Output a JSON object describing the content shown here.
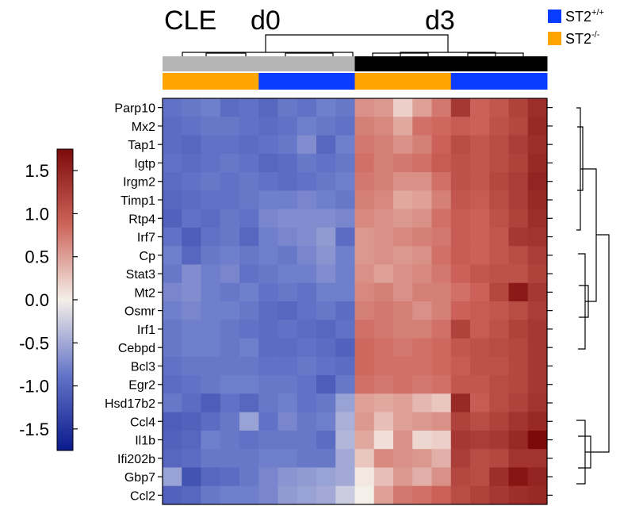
{
  "chart_data": {
    "type": "heatmap",
    "title_left": "CLE",
    "group_labels": [
      "d0",
      "d3"
    ],
    "columns": 20,
    "column_day": [
      "d0",
      "d0",
      "d0",
      "d0",
      "d0",
      "d0",
      "d0",
      "d0",
      "d0",
      "d0",
      "d3",
      "d3",
      "d3",
      "d3",
      "d3",
      "d3",
      "d3",
      "d3",
      "d3",
      "d3"
    ],
    "column_genotype": [
      "ST2-/-",
      "ST2-/-",
      "ST2-/-",
      "ST2-/-",
      "ST2-/-",
      "ST2+/+",
      "ST2+/+",
      "ST2+/+",
      "ST2+/+",
      "ST2+/+",
      "ST2-/-",
      "ST2-/-",
      "ST2-/-",
      "ST2-/-",
      "ST2-/-",
      "ST2+/+",
      "ST2+/+",
      "ST2+/+",
      "ST2+/+",
      "ST2+/+"
    ],
    "rows": [
      "Parp10",
      "Mx2",
      "Tap1",
      "Igtp",
      "Irgm2",
      "Timp1",
      "Rtp4",
      "Irf7",
      "Cp",
      "Stat3",
      "Mt2",
      "Osmr",
      "Irf1",
      "Cebpd",
      "Bcl3",
      "Egr2",
      "Hsd17b2",
      "Ccl4",
      "Il1b",
      "Ifi202b",
      "Gbp7",
      "Ccl2"
    ],
    "values": [
      [
        -0.9,
        -0.85,
        -0.8,
        -0.95,
        -0.9,
        -1.0,
        -0.85,
        -0.9,
        -0.8,
        -0.85,
        0.6,
        0.55,
        0.2,
        0.5,
        0.75,
        1.3,
        0.9,
        1.0,
        1.2,
        1.4
      ],
      [
        -0.95,
        -0.9,
        -0.85,
        -0.85,
        -0.9,
        -0.95,
        -0.9,
        -0.8,
        -0.85,
        -0.9,
        0.7,
        0.65,
        0.45,
        0.8,
        0.85,
        0.95,
        0.9,
        1.05,
        1.15,
        1.45
      ],
      [
        -0.95,
        -1.0,
        -0.9,
        -0.9,
        -0.95,
        -0.9,
        -0.85,
        -0.7,
        -1.0,
        -0.8,
        0.75,
        0.7,
        0.6,
        0.7,
        0.9,
        1.1,
        1.0,
        1.1,
        1.25,
        1.4
      ],
      [
        -0.9,
        -0.95,
        -0.9,
        -0.85,
        -0.9,
        -1.0,
        -0.95,
        -0.85,
        -0.9,
        -0.85,
        0.8,
        0.7,
        0.75,
        0.8,
        0.95,
        1.05,
        1.0,
        1.1,
        1.2,
        1.45
      ],
      [
        -0.95,
        -0.9,
        -0.85,
        -0.9,
        -0.85,
        -0.9,
        -0.95,
        -0.9,
        -0.85,
        -0.8,
        0.75,
        0.7,
        0.6,
        0.6,
        0.8,
        1.05,
        1.0,
        1.15,
        1.25,
        1.5
      ],
      [
        -1.0,
        -0.95,
        -0.9,
        -0.9,
        -0.85,
        -0.8,
        -0.8,
        -0.75,
        -0.8,
        -0.85,
        0.7,
        0.65,
        0.45,
        0.5,
        0.7,
        1.0,
        0.95,
        1.1,
        1.25,
        1.45
      ],
      [
        -1.05,
        -0.9,
        -0.95,
        -0.85,
        -0.9,
        -0.75,
        -0.7,
        -0.7,
        -0.7,
        -0.75,
        0.65,
        0.6,
        0.55,
        0.6,
        0.8,
        0.95,
        0.9,
        1.05,
        1.2,
        1.4
      ],
      [
        -0.9,
        -1.1,
        -0.9,
        -0.85,
        -1.0,
        -0.8,
        -0.75,
        -0.7,
        -0.6,
        -0.95,
        0.55,
        0.6,
        0.65,
        0.7,
        0.75,
        0.95,
        0.9,
        1.0,
        1.3,
        1.35
      ],
      [
        -0.8,
        -1.0,
        -0.85,
        -0.8,
        -0.85,
        -0.8,
        -0.85,
        -0.75,
        -0.65,
        -0.8,
        0.55,
        0.6,
        0.55,
        0.6,
        0.8,
        0.95,
        0.9,
        1.0,
        1.1,
        1.25
      ],
      [
        -0.85,
        -0.7,
        -0.8,
        -0.75,
        -0.9,
        -0.85,
        -0.8,
        -0.8,
        -0.7,
        -0.8,
        0.6,
        0.5,
        0.6,
        0.65,
        0.75,
        0.9,
        1.0,
        1.05,
        1.05,
        1.2
      ],
      [
        -0.75,
        -0.7,
        -0.8,
        -0.85,
        -0.8,
        -0.9,
        -0.85,
        -0.9,
        -0.8,
        -0.8,
        0.65,
        0.7,
        0.6,
        0.7,
        0.7,
        0.8,
        0.9,
        1.15,
        1.6,
        1.3
      ],
      [
        -0.8,
        -0.75,
        -0.8,
        -0.8,
        -0.85,
        -0.95,
        -1.0,
        -0.9,
        -0.85,
        -0.95,
        0.7,
        0.75,
        0.7,
        0.6,
        0.7,
        0.9,
        0.95,
        1.0,
        1.1,
        1.25
      ],
      [
        -0.85,
        -0.8,
        -0.8,
        -0.85,
        -0.9,
        -0.95,
        -0.9,
        -0.95,
        -1.0,
        -0.9,
        0.8,
        0.75,
        0.7,
        0.7,
        0.8,
        1.2,
        0.95,
        1.05,
        1.2,
        1.3
      ],
      [
        -0.85,
        -0.8,
        -0.8,
        -0.85,
        -0.8,
        -0.95,
        -0.95,
        -0.9,
        -0.95,
        -1.05,
        0.85,
        0.8,
        0.75,
        0.8,
        0.85,
        1.0,
        1.05,
        1.1,
        1.15,
        1.3
      ],
      [
        -0.9,
        -0.85,
        -0.85,
        -0.85,
        -0.85,
        -0.9,
        -0.9,
        -0.85,
        -0.9,
        -0.95,
        0.85,
        0.8,
        0.8,
        0.8,
        0.85,
        0.95,
        1.05,
        1.05,
        1.15,
        1.3
      ],
      [
        -0.95,
        -0.9,
        -0.85,
        -0.8,
        -0.8,
        -0.85,
        -0.85,
        -0.9,
        -1.1,
        -0.85,
        0.8,
        0.75,
        0.8,
        0.75,
        0.8,
        1.0,
        1.0,
        1.1,
        1.15,
        1.3
      ],
      [
        -0.85,
        -0.95,
        -1.1,
        -0.9,
        -1.0,
        -0.85,
        -0.8,
        -0.9,
        -0.85,
        -0.55,
        0.5,
        0.45,
        0.5,
        0.35,
        0.25,
        1.45,
        0.95,
        1.1,
        1.2,
        1.35
      ],
      [
        -1.1,
        -1.05,
        -0.95,
        -0.85,
        -0.55,
        -0.9,
        -0.75,
        -0.85,
        -0.8,
        -0.45,
        0.55,
        0.3,
        0.5,
        0.55,
        0.6,
        1.2,
        1.1,
        1.2,
        1.35,
        1.45
      ],
      [
        -1.05,
        -1.0,
        -0.8,
        -0.85,
        -0.9,
        -0.85,
        -0.85,
        -0.85,
        -0.95,
        -0.4,
        0.45,
        0.1,
        0.6,
        0.15,
        0.2,
        1.3,
        1.25,
        1.3,
        1.45,
        1.75
      ],
      [
        -1.0,
        -0.95,
        -0.85,
        -0.85,
        -0.85,
        -0.8,
        -0.8,
        -0.85,
        -0.85,
        -0.5,
        0.25,
        0.65,
        0.6,
        0.55,
        0.4,
        1.25,
        1.1,
        1.15,
        1.35,
        1.35
      ],
      [
        -0.55,
        -1.2,
        -1.0,
        -0.95,
        -0.85,
        -0.75,
        -0.65,
        -0.6,
        -0.55,
        -0.5,
        0.05,
        0.3,
        0.55,
        0.4,
        0.6,
        1.15,
        1.1,
        1.4,
        1.65,
        1.5
      ],
      [
        -1.05,
        -1.0,
        -0.85,
        -0.8,
        -0.8,
        -0.75,
        -0.6,
        -0.55,
        -0.5,
        -0.25,
        0.0,
        0.5,
        0.75,
        0.8,
        0.9,
        1.1,
        1.2,
        1.3,
        1.4,
        1.45
      ]
    ],
    "colorbar": {
      "ticks": [
        "1.5",
        "1.0",
        "0.5",
        "0.0",
        "-0.5",
        "-1.0",
        "-1.5"
      ],
      "tick_values": [
        1.5,
        1.0,
        0.5,
        0.0,
        -0.5,
        -1.0,
        -1.5
      ],
      "range": [
        -1.75,
        1.75
      ],
      "low_color": "#0a1a8c",
      "mid_color": "#f4efe9",
      "high_color": "#7d0a0a"
    },
    "legend": {
      "position": "top-right",
      "items": [
        {
          "label": "ST2",
          "sup": "+/+",
          "color": "#0a3cff"
        },
        {
          "label": "ST2",
          "sup": "-/-",
          "color": "#ffa500"
        }
      ]
    },
    "annotation_colors": {
      "d0": "#b5b5b5",
      "d3": "#000000"
    },
    "row_dendrogram_groups": [
      [
        0,
        1,
        2,
        3,
        4,
        5,
        6,
        7
      ],
      [
        8,
        9,
        10,
        11,
        12,
        13,
        14,
        15,
        16
      ],
      [
        17,
        18,
        19,
        20,
        21
      ]
    ]
  }
}
